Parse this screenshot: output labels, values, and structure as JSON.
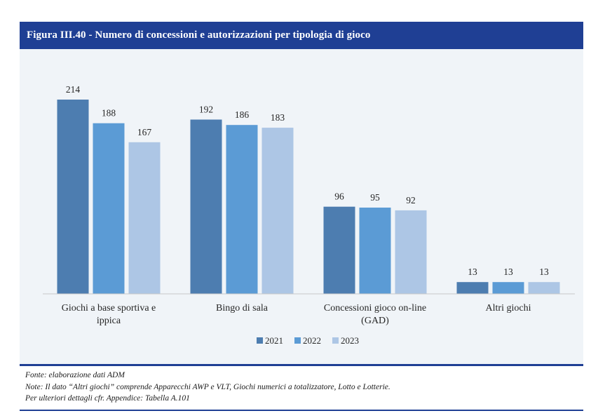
{
  "title": "Figura III.40 - Numero di concessioni e autorizzazioni per tipologia di gioco",
  "chart_data": {
    "type": "bar",
    "categories": [
      [
        "Giochi a base sportiva e",
        "ippica"
      ],
      [
        "Bingo di sala"
      ],
      [
        "Concessioni gioco on-line",
        "(GAD)"
      ],
      [
        "Altri giochi"
      ]
    ],
    "series": [
      {
        "name": "2021",
        "color": "#4d7db0",
        "values": [
          214,
          192,
          96,
          13
        ]
      },
      {
        "name": "2022",
        "color": "#5b9bd5",
        "values": [
          188,
          186,
          95,
          13
        ]
      },
      {
        "name": "2023",
        "color": "#adc6e5",
        "values": [
          167,
          183,
          92,
          13
        ]
      }
    ],
    "ylim": [
      0,
      214
    ],
    "legend_position": "bottom",
    "grid": false
  },
  "notes": {
    "source": "Fonte: elaborazione dati ADM",
    "note": "Note: Il dato “Altri giochi” comprende Apparecchi AWP e VLT, Giochi numerici a totalizzatore, Lotto e Lotterie.",
    "details": "Per ulteriori dettagli cfr. Appendice: Tabella A.101"
  }
}
